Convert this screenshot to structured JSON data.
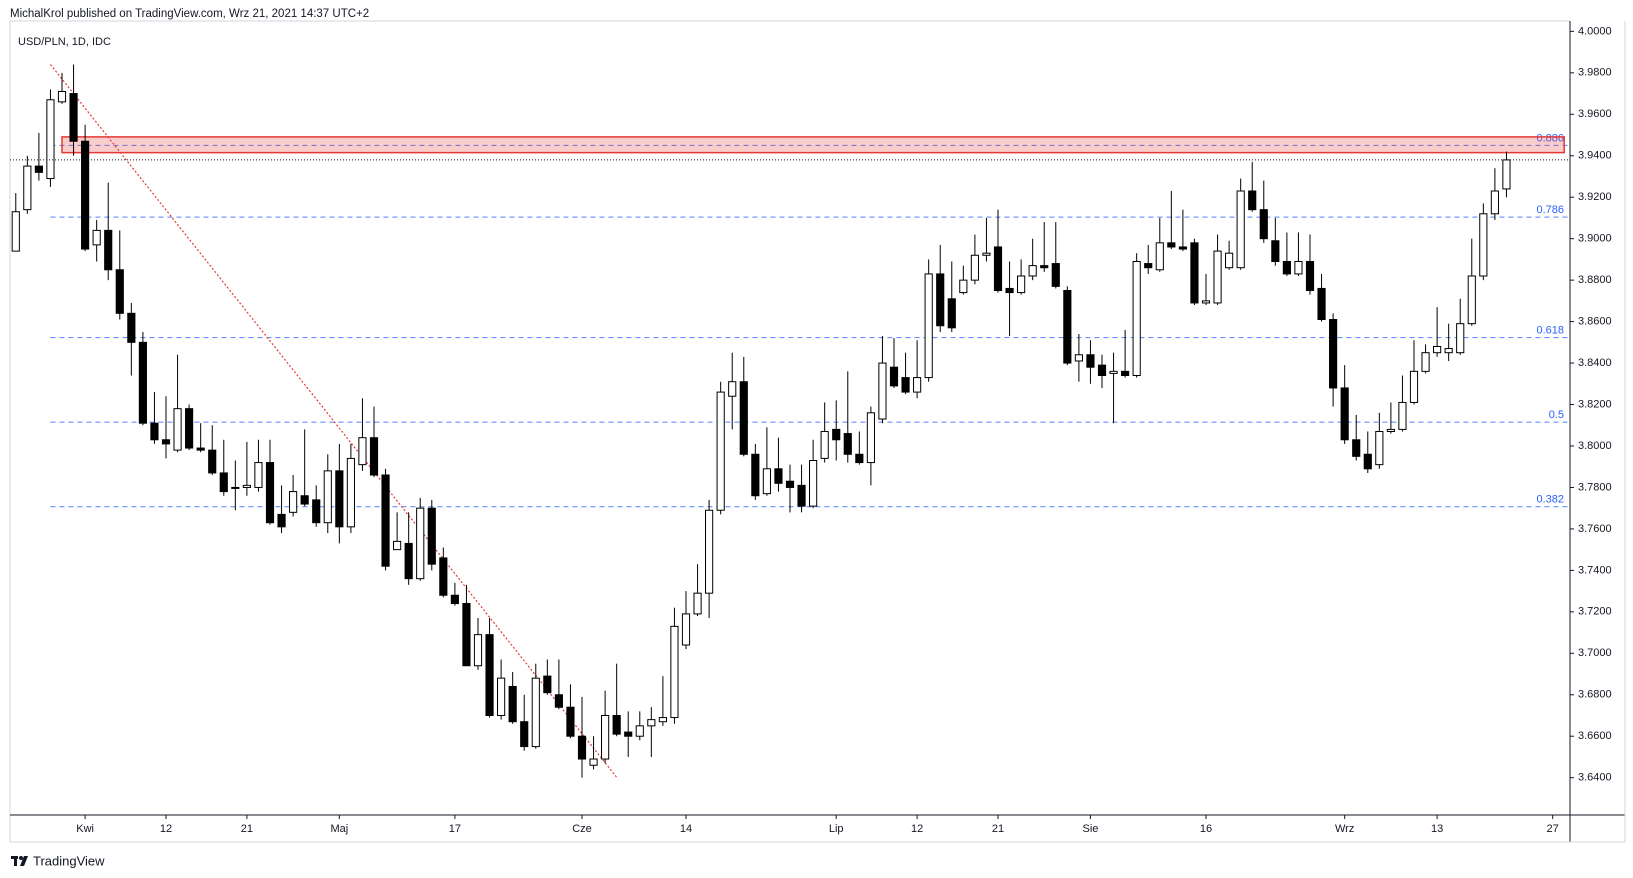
{
  "header": "MichalKrol published on TradingView.com, Wrz 21, 2021 14:37 UTC+2",
  "footer": "TradingView",
  "chart_data": {
    "type": "candlestick",
    "title": "USD/PLN, 1D, IDC",
    "up_color": "#ffffff",
    "down_color": "#000000",
    "outline_color": "#000000",
    "open": [
      3.894,
      3.914,
      3.935,
      3.929,
      3.966,
      3.97,
      3.947,
      3.897,
      3.904,
      3.885,
      3.864,
      3.85,
      3.811,
      3.803,
      3.798,
      3.818,
      3.799,
      3.798,
      3.787,
      3.78,
      3.78,
      3.78,
      3.792,
      3.767,
      3.768,
      3.776,
      3.774,
      3.763,
      3.788,
      3.761,
      3.791,
      3.804,
      3.786,
      3.75,
      3.753,
      3.736,
      3.77,
      3.746,
      3.728,
      3.724,
      3.694,
      3.709,
      3.67,
      3.684,
      3.667,
      3.655,
      3.689,
      3.68,
      3.674,
      3.66,
      3.646,
      3.649,
      3.67,
      3.662,
      3.66,
      3.665,
      3.667,
      3.669,
      3.704,
      3.719,
      3.729,
      3.769,
      3.824,
      3.831,
      3.796,
      3.777,
      3.789,
      3.783,
      3.781,
      3.771,
      3.794,
      3.808,
      3.806,
      3.796,
      3.792,
      3.813,
      3.838,
      3.833,
      3.826,
      3.833,
      3.883,
      3.871,
      3.874,
      3.88,
      3.892,
      3.896,
      3.876,
      3.874,
      3.882,
      3.887,
      3.888,
      3.875,
      3.841,
      3.844,
      3.839,
      3.835,
      3.836,
      3.834,
      3.888,
      3.885,
      3.898,
      3.896,
      3.898,
      3.869,
      3.869,
      3.886,
      3.886,
      3.923,
      3.914,
      3.899,
      3.889,
      3.883,
      3.889,
      3.876,
      3.861,
      3.828,
      3.803,
      3.796,
      3.791,
      3.807,
      3.808,
      3.821,
      3.836,
      3.845,
      3.845,
      3.845,
      3.859,
      3.882,
      3.912,
      3.924
    ],
    "high": [
      3.922,
      3.94,
      3.951,
      3.972,
      3.98,
      3.984,
      3.955,
      3.909,
      3.927,
      3.904,
      3.869,
      3.855,
      3.826,
      3.824,
      3.844,
      3.82,
      3.811,
      3.81,
      3.803,
      3.793,
      3.802,
      3.803,
      3.803,
      3.781,
      3.786,
      3.808,
      3.781,
      3.796,
      3.801,
      3.801,
      3.823,
      3.819,
      3.789,
      3.768,
      3.768,
      3.775,
      3.774,
      3.751,
      3.734,
      3.733,
      3.717,
      3.717,
      3.697,
      3.691,
      3.68,
      3.695,
      3.697,
      3.697,
      3.685,
      3.679,
      3.66,
      3.682,
      3.695,
      3.672,
      3.672,
      3.674,
      3.689,
      3.722,
      3.73,
      3.743,
      3.774,
      3.831,
      3.845,
      3.843,
      3.801,
      3.809,
      3.804,
      3.791,
      3.791,
      3.803,
      3.821,
      3.822,
      3.836,
      3.807,
      3.819,
      3.853,
      3.852,
      3.845,
      3.851,
      3.89,
      3.897,
      3.889,
      3.887,
      3.902,
      3.91,
      3.914,
      3.889,
      3.89,
      3.9,
      3.908,
      3.908,
      3.877,
      3.854,
      3.851,
      3.844,
      3.845,
      3.856,
      3.893,
      3.897,
      3.91,
      3.923,
      3.914,
      3.9,
      3.883,
      3.902,
      3.899,
      3.929,
      3.937,
      3.928,
      3.91,
      3.903,
      3.903,
      3.902,
      3.883,
      3.864,
      3.839,
      3.815,
      3.807,
      3.816,
      3.821,
      3.834,
      3.851,
      3.849,
      3.867,
      3.859,
      3.871,
      3.9,
      3.917,
      3.934,
      3.942
    ],
    "low": [
      3.894,
      3.912,
      3.928,
      3.925,
      3.965,
      3.94,
      3.894,
      3.889,
      3.88,
      3.861,
      3.834,
      3.81,
      3.801,
      3.794,
      3.797,
      3.798,
      3.797,
      3.786,
      3.776,
      3.769,
      3.776,
      3.778,
      3.762,
      3.758,
      3.766,
      3.771,
      3.761,
      3.758,
      3.753,
      3.758,
      3.788,
      3.785,
      3.74,
      3.75,
      3.733,
      3.735,
      3.74,
      3.727,
      3.723,
      3.694,
      3.692,
      3.669,
      3.668,
      3.666,
      3.653,
      3.654,
      3.68,
      3.673,
      3.659,
      3.64,
      3.644,
      3.647,
      3.66,
      3.65,
      3.658,
      3.65,
      3.665,
      3.666,
      3.702,
      3.718,
      3.717,
      3.767,
      3.808,
      3.795,
      3.774,
      3.776,
      3.778,
      3.768,
      3.768,
      3.77,
      3.792,
      3.793,
      3.792,
      3.791,
      3.781,
      3.811,
      3.828,
      3.825,
      3.823,
      3.831,
      3.855,
      3.855,
      3.873,
      3.878,
      3.889,
      3.874,
      3.853,
      3.873,
      3.88,
      3.884,
      3.876,
      3.839,
      3.831,
      3.83,
      3.828,
      3.811,
      3.833,
      3.833,
      3.883,
      3.884,
      3.895,
      3.894,
      3.868,
      3.868,
      3.868,
      3.885,
      3.885,
      3.913,
      3.898,
      3.887,
      3.882,
      3.882,
      3.873,
      3.86,
      3.819,
      3.801,
      3.793,
      3.787,
      3.789,
      3.806,
      3.807,
      3.82,
      3.835,
      3.843,
      3.841,
      3.844,
      3.858,
      3.88,
      3.909,
      3.92
    ],
    "close": [
      3.913,
      3.935,
      3.932,
      3.967,
      3.971,
      3.947,
      3.895,
      3.904,
      3.885,
      3.864,
      3.85,
      3.811,
      3.803,
      3.801,
      3.818,
      3.799,
      3.798,
      3.787,
      3.778,
      3.78,
      3.781,
      3.792,
      3.763,
      3.761,
      3.778,
      3.772,
      3.763,
      3.788,
      3.761,
      3.794,
      3.804,
      3.786,
      3.742,
      3.754,
      3.736,
      3.77,
      3.743,
      3.728,
      3.724,
      3.694,
      3.709,
      3.67,
      3.688,
      3.667,
      3.655,
      3.688,
      3.681,
      3.674,
      3.66,
      3.649,
      3.649,
      3.67,
      3.661,
      3.66,
      3.665,
      3.668,
      3.669,
      3.713,
      3.719,
      3.729,
      3.769,
      3.826,
      3.831,
      3.796,
      3.776,
      3.789,
      3.782,
      3.78,
      3.771,
      3.793,
      3.807,
      3.803,
      3.796,
      3.792,
      3.816,
      3.84,
      3.829,
      3.826,
      3.833,
      3.883,
      3.858,
      3.857,
      3.88,
      3.892,
      3.893,
      3.875,
      3.874,
      3.882,
      3.887,
      3.886,
      3.877,
      3.84,
      3.844,
      3.838,
      3.834,
      3.836,
      3.834,
      3.889,
      3.886,
      3.898,
      3.896,
      3.895,
      3.869,
      3.87,
      3.894,
      3.893,
      3.923,
      3.914,
      3.9,
      3.889,
      3.883,
      3.889,
      3.875,
      3.861,
      3.828,
      3.803,
      3.795,
      3.789,
      3.807,
      3.808,
      3.821,
      3.836,
      3.845,
      3.848,
      3.847,
      3.859,
      3.882,
      3.912,
      3.923,
      3.938
    ],
    "xlim": [
      -0.5,
      134.5
    ],
    "xticks": [
      {
        "value": 6,
        "label": "Kwi"
      },
      {
        "value": 13,
        "label": "12"
      },
      {
        "value": 20,
        "label": "21"
      },
      {
        "value": 28,
        "label": "Maj"
      },
      {
        "value": 38,
        "label": "17"
      },
      {
        "value": 49,
        "label": "Cze"
      },
      {
        "value": 58,
        "label": "14"
      },
      {
        "value": 71,
        "label": "Lip"
      },
      {
        "value": 78,
        "label": "12"
      },
      {
        "value": 85,
        "label": "21"
      },
      {
        "value": 93,
        "label": "Sie"
      },
      {
        "value": 103,
        "label": "16"
      },
      {
        "value": 115,
        "label": "Wrz"
      },
      {
        "value": 123,
        "label": "13"
      },
      {
        "value": 133,
        "label": "27"
      }
    ],
    "ylim": [
      3.622,
      4.005
    ],
    "yticks": [
      {
        "value": 3.64,
        "label": "3.6400"
      },
      {
        "value": 3.66,
        "label": "3.6600"
      },
      {
        "value": 3.68,
        "label": "3.6800"
      },
      {
        "value": 3.7,
        "label": "3.7000"
      },
      {
        "value": 3.72,
        "label": "3.7200"
      },
      {
        "value": 3.74,
        "label": "3.7400"
      },
      {
        "value": 3.76,
        "label": "3.7600"
      },
      {
        "value": 3.78,
        "label": "3.7800"
      },
      {
        "value": 3.8,
        "label": "3.8000"
      },
      {
        "value": 3.82,
        "label": "3.8200"
      },
      {
        "value": 3.84,
        "label": "3.8400"
      },
      {
        "value": 3.86,
        "label": "3.8600"
      },
      {
        "value": 3.88,
        "label": "3.8800"
      },
      {
        "value": 3.9,
        "label": "3.9000"
      },
      {
        "value": 3.92,
        "label": "3.9200"
      },
      {
        "value": 3.94,
        "label": "3.9400"
      },
      {
        "value": 3.96,
        "label": "3.9600"
      },
      {
        "value": 3.98,
        "label": "3.9800"
      },
      {
        "value": 4.0,
        "label": "4.0000"
      }
    ],
    "grid": false,
    "fib_color": "#2962ff",
    "fib_levels": [
      {
        "ratio": 0.886,
        "price": 3.945
      },
      {
        "ratio": 0.786,
        "price": 3.9104
      },
      {
        "ratio": 0.618,
        "price": 3.8523
      },
      {
        "ratio": 0.5,
        "price": 3.8115
      },
      {
        "ratio": 0.382,
        "price": 3.7707
      }
    ],
    "zone": {
      "top": 3.9491,
      "bottom": 3.9415,
      "x_start": 4,
      "x_end": 134,
      "color": "#e53935"
    },
    "trendline": {
      "x": [
        3,
        52.1
      ],
      "y": [
        3.984,
        3.6395
      ],
      "color": "#e53935"
    }
  }
}
